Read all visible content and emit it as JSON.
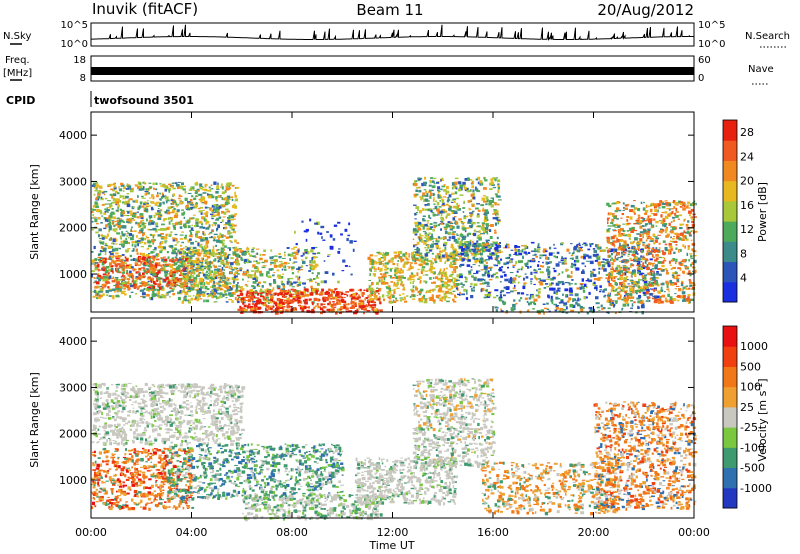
{
  "header": {
    "station": "Inuvik (fitACF)",
    "beam": "Beam 11",
    "date": "20/Aug/2012"
  },
  "panels": {
    "nsky_label": "N.Sky",
    "nsearch_label": "N.Search",
    "nsky_ticks": [
      "10^5",
      "10^0"
    ],
    "freq_label_1": "Freq.",
    "freq_label_2": "[MHz]",
    "freq_ticks": [
      "18",
      "8"
    ],
    "nave_label": "Nave",
    "nave_ticks": [
      "60",
      "0"
    ],
    "cpid_label": "CPID",
    "cpid_value": "twofsound 3501"
  },
  "chart_data": [
    {
      "type": "heatmap",
      "name": "power",
      "ylabel": "Slant Range [km]",
      "xlabel": "",
      "x_ticks": [
        "00:00",
        "04:00",
        "08:00",
        "12:00",
        "16:00",
        "20:00",
        "00:00"
      ],
      "y_ticks": [
        1000,
        2000,
        3000,
        4000
      ],
      "ylim": [
        180,
        4500
      ],
      "xlim_hours": [
        0,
        24
      ],
      "colorbar": {
        "label": "Power [dB]",
        "ticks": [
          4,
          8,
          12,
          16,
          20,
          24,
          28
        ],
        "range": [
          0,
          30
        ],
        "colors": [
          "#1a2fe0",
          "#2b55b8",
          "#3c8a8a",
          "#4caa5a",
          "#a8c83a",
          "#e8b820",
          "#f08a20",
          "#f05a20",
          "#e82010"
        ]
      }
    },
    {
      "type": "heatmap",
      "name": "velocity",
      "ylabel": "Slant Range [km]",
      "xlabel": "Time UT",
      "x_ticks": [
        "00:00",
        "04:00",
        "08:00",
        "12:00",
        "16:00",
        "20:00",
        "00:00"
      ],
      "y_ticks": [
        1000,
        2000,
        3000,
        4000
      ],
      "ylim": [
        180,
        4500
      ],
      "xlim_hours": [
        0,
        24
      ],
      "colorbar": {
        "label": "Velocity [m s^-1]",
        "ticks": [
          "1000",
          "500",
          "100",
          "25",
          "-25",
          "-100",
          "-500",
          "-1000"
        ],
        "colors": [
          "#2338c0",
          "#2f70b0",
          "#3f9a70",
          "#7ac840",
          "#c8c8c0",
          "#f0a030",
          "#f07818",
          "#f04010",
          "#e81010"
        ]
      }
    }
  ]
}
